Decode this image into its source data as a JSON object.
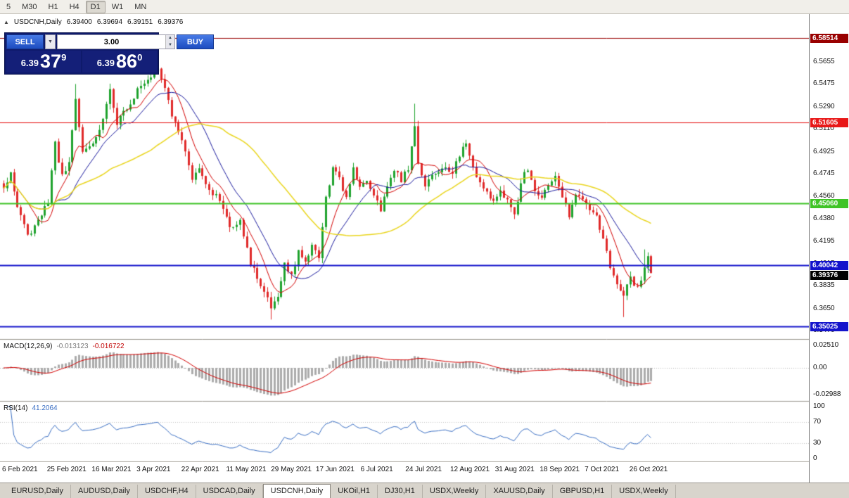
{
  "timeframe_toolbar": {
    "buttons": [
      {
        "label": "5",
        "active": false
      },
      {
        "label": "M30",
        "active": false
      },
      {
        "label": "H1",
        "active": false
      },
      {
        "label": "H4",
        "active": false
      },
      {
        "label": "D1",
        "active": true
      },
      {
        "label": "W1",
        "active": false
      },
      {
        "label": "MN",
        "active": false
      }
    ]
  },
  "icons": {
    "collapse": "▲",
    "chevron_down": "▼",
    "spin_up": "▲",
    "spin_down": "▼"
  },
  "chart": {
    "symbol_period": "USDCNH,Daily",
    "open": "6.39400",
    "high": "6.39694",
    "low": "6.39151",
    "close": "6.39376"
  },
  "trade_panel": {
    "sell_label": "SELL",
    "buy_label": "BUY",
    "volume_value": "3.00",
    "sell_price_prefix": "6.39",
    "sell_price_big": "37",
    "sell_price_sup": "9",
    "buy_price_prefix": "6.39",
    "buy_price_big": "86",
    "buy_price_sup": "0"
  },
  "indicators": {
    "macd_label": "MACD(12,26,9)",
    "macd_value_main": "-0.013123",
    "macd_value_signal": "-0.016722",
    "rsi_label": "RSI(14)",
    "rsi_value": "41.2064"
  },
  "price_axis": {
    "ticks": [
      "6.5655",
      "6.5475",
      "6.5290",
      "6.5110",
      "6.4925",
      "6.4745",
      "6.4560",
      "6.4380",
      "6.4195",
      "6.4015",
      "6.3835",
      "6.3650",
      "6.3470"
    ]
  },
  "macd_axis": {
    "ticks": [
      "0.02510",
      "0.00",
      "-0.02988"
    ]
  },
  "rsi_axis": {
    "ticks": [
      "100",
      "70",
      "30",
      "0"
    ]
  },
  "levels": [
    {
      "label": "6.58514",
      "value": 6.58514,
      "color": "#990000",
      "width": 1
    },
    {
      "label": "6.51605",
      "value": 6.51605,
      "color": "#e81717",
      "width": 1
    },
    {
      "label": "6.45060",
      "value": 6.4506,
      "color": "#3fc426",
      "width": 2
    },
    {
      "label": "6.40042",
      "value": 6.40042,
      "color": "#1414cc",
      "width": 2
    },
    {
      "label": "6.35025",
      "value": 6.35025,
      "color": "#1414cc",
      "width": 2
    }
  ],
  "current_price": {
    "label": "6.39376",
    "value": 6.39376,
    "bg": "#000000"
  },
  "time_axis": {
    "labels": [
      "6 Feb 2021",
      "25 Feb 2021",
      "16 Mar 2021",
      "3 Apr 2021",
      "22 Apr 2021",
      "11 May 2021",
      "29 May 2021",
      "17 Jun 2021",
      "6 Jul 2021",
      "24 Jul 2021",
      "12 Aug 2021",
      "31 Aug 2021",
      "18 Sep 2021",
      "7 Oct 2021",
      "26 Oct 2021"
    ]
  },
  "tabs": [
    {
      "label": "EURUSD,Daily",
      "active": false
    },
    {
      "label": "AUDUSD,Daily",
      "active": false
    },
    {
      "label": "USDCHF,H4",
      "active": false
    },
    {
      "label": "USDCAD,Daily",
      "active": false
    },
    {
      "label": "USDCNH,Daily",
      "active": true
    },
    {
      "label": "UKOil,H1",
      "active": false
    },
    {
      "label": "DJ30,H1",
      "active": false
    },
    {
      "label": "USDX,Weekly",
      "active": false
    },
    {
      "label": "XAUUSD,Daily",
      "active": false
    },
    {
      "label": "GBPUSD,H1",
      "active": false
    },
    {
      "label": "USDX,Weekly",
      "active": false
    }
  ],
  "chart_data": {
    "type": "candlestick",
    "symbol": "USDCNH",
    "period": "Daily",
    "candles_count": 190,
    "close_anchors": [
      [
        0,
        6.462
      ],
      [
        2,
        6.474
      ],
      [
        4,
        6.448
      ],
      [
        7,
        6.424
      ],
      [
        10,
        6.436
      ],
      [
        13,
        6.452
      ],
      [
        15,
        6.5
      ],
      [
        17,
        6.472
      ],
      [
        19,
        6.482
      ],
      [
        21,
        6.535
      ],
      [
        23,
        6.492
      ],
      [
        26,
        6.499
      ],
      [
        29,
        6.518
      ],
      [
        31,
        6.545
      ],
      [
        33,
        6.516
      ],
      [
        36,
        6.528
      ],
      [
        39,
        6.543
      ],
      [
        42,
        6.552
      ],
      [
        45,
        6.561
      ],
      [
        47,
        6.546
      ],
      [
        49,
        6.522
      ],
      [
        52,
        6.5
      ],
      [
        55,
        6.472
      ],
      [
        57,
        6.481
      ],
      [
        60,
        6.462
      ],
      [
        63,
        6.453
      ],
      [
        66,
        6.432
      ],
      [
        69,
        6.437
      ],
      [
        72,
        6.402
      ],
      [
        75,
        6.384
      ],
      [
        78,
        6.366
      ],
      [
        80,
        6.372
      ],
      [
        82,
        6.4
      ],
      [
        84,
        6.392
      ],
      [
        86,
        6.41
      ],
      [
        88,
        6.402
      ],
      [
        90,
        6.416
      ],
      [
        92,
        6.406
      ],
      [
        94,
        6.455
      ],
      [
        96,
        6.478
      ],
      [
        98,
        6.47
      ],
      [
        100,
        6.456
      ],
      [
        102,
        6.478
      ],
      [
        104,
        6.464
      ],
      [
        106,
        6.469
      ],
      [
        108,
        6.456
      ],
      [
        110,
        6.446
      ],
      [
        112,
        6.464
      ],
      [
        114,
        6.478
      ],
      [
        116,
        6.47
      ],
      [
        118,
        6.479
      ],
      [
        120,
        6.515
      ],
      [
        121,
        6.483
      ],
      [
        123,
        6.466
      ],
      [
        125,
        6.474
      ],
      [
        127,
        6.476
      ],
      [
        129,
        6.48
      ],
      [
        131,
        6.475
      ],
      [
        133,
        6.49
      ],
      [
        135,
        6.499
      ],
      [
        137,
        6.479
      ],
      [
        139,
        6.466
      ],
      [
        141,
        6.459
      ],
      [
        143,
        6.454
      ],
      [
        145,
        6.459
      ],
      [
        147,
        6.453
      ],
      [
        149,
        6.44
      ],
      [
        151,
        6.468
      ],
      [
        153,
        6.479
      ],
      [
        155,
        6.461
      ],
      [
        157,
        6.455
      ],
      [
        159,
        6.464
      ],
      [
        161,
        6.471
      ],
      [
        163,
        6.455
      ],
      [
        165,
        6.441
      ],
      [
        167,
        6.459
      ],
      [
        169,
        6.454
      ],
      [
        171,
        6.446
      ],
      [
        173,
        6.44
      ],
      [
        175,
        6.421
      ],
      [
        177,
        6.4
      ],
      [
        179,
        6.386
      ],
      [
        181,
        6.376
      ],
      [
        183,
        6.39
      ],
      [
        185,
        6.381
      ],
      [
        187,
        6.396
      ],
      [
        188,
        6.406
      ],
      [
        189,
        6.3938
      ]
    ],
    "wick_overrides": [
      {
        "i": 21,
        "high": 6.5475
      },
      {
        "i": 45,
        "high": 6.566
      },
      {
        "i": 78,
        "low": 6.356
      },
      {
        "i": 120,
        "high": 6.5315
      },
      {
        "i": 181,
        "low": 6.358
      },
      {
        "i": 187,
        "high": 6.413
      }
    ],
    "ma_periods": {
      "fast_red": 8,
      "mid_navy": 16,
      "slow_yellow": 44
    },
    "macd_params": [
      12,
      26,
      9
    ],
    "rsi_period": 14,
    "levels": [
      6.58514,
      6.51605,
      6.4506,
      6.40042,
      6.35025
    ],
    "last_ohlc": {
      "open": 6.394,
      "high": 6.39694,
      "low": 6.39151,
      "close": 6.39376
    },
    "colors": {
      "bull": "#1fa32e",
      "bear": "#e02a2a",
      "ma_fast": "#d40000",
      "ma_mid": "#1a1a9e",
      "ma_slow": "#ead61f",
      "macd_hist": "#ababab",
      "macd_signal": "#d40000",
      "rsi_line": "#3a6fc4"
    }
  }
}
